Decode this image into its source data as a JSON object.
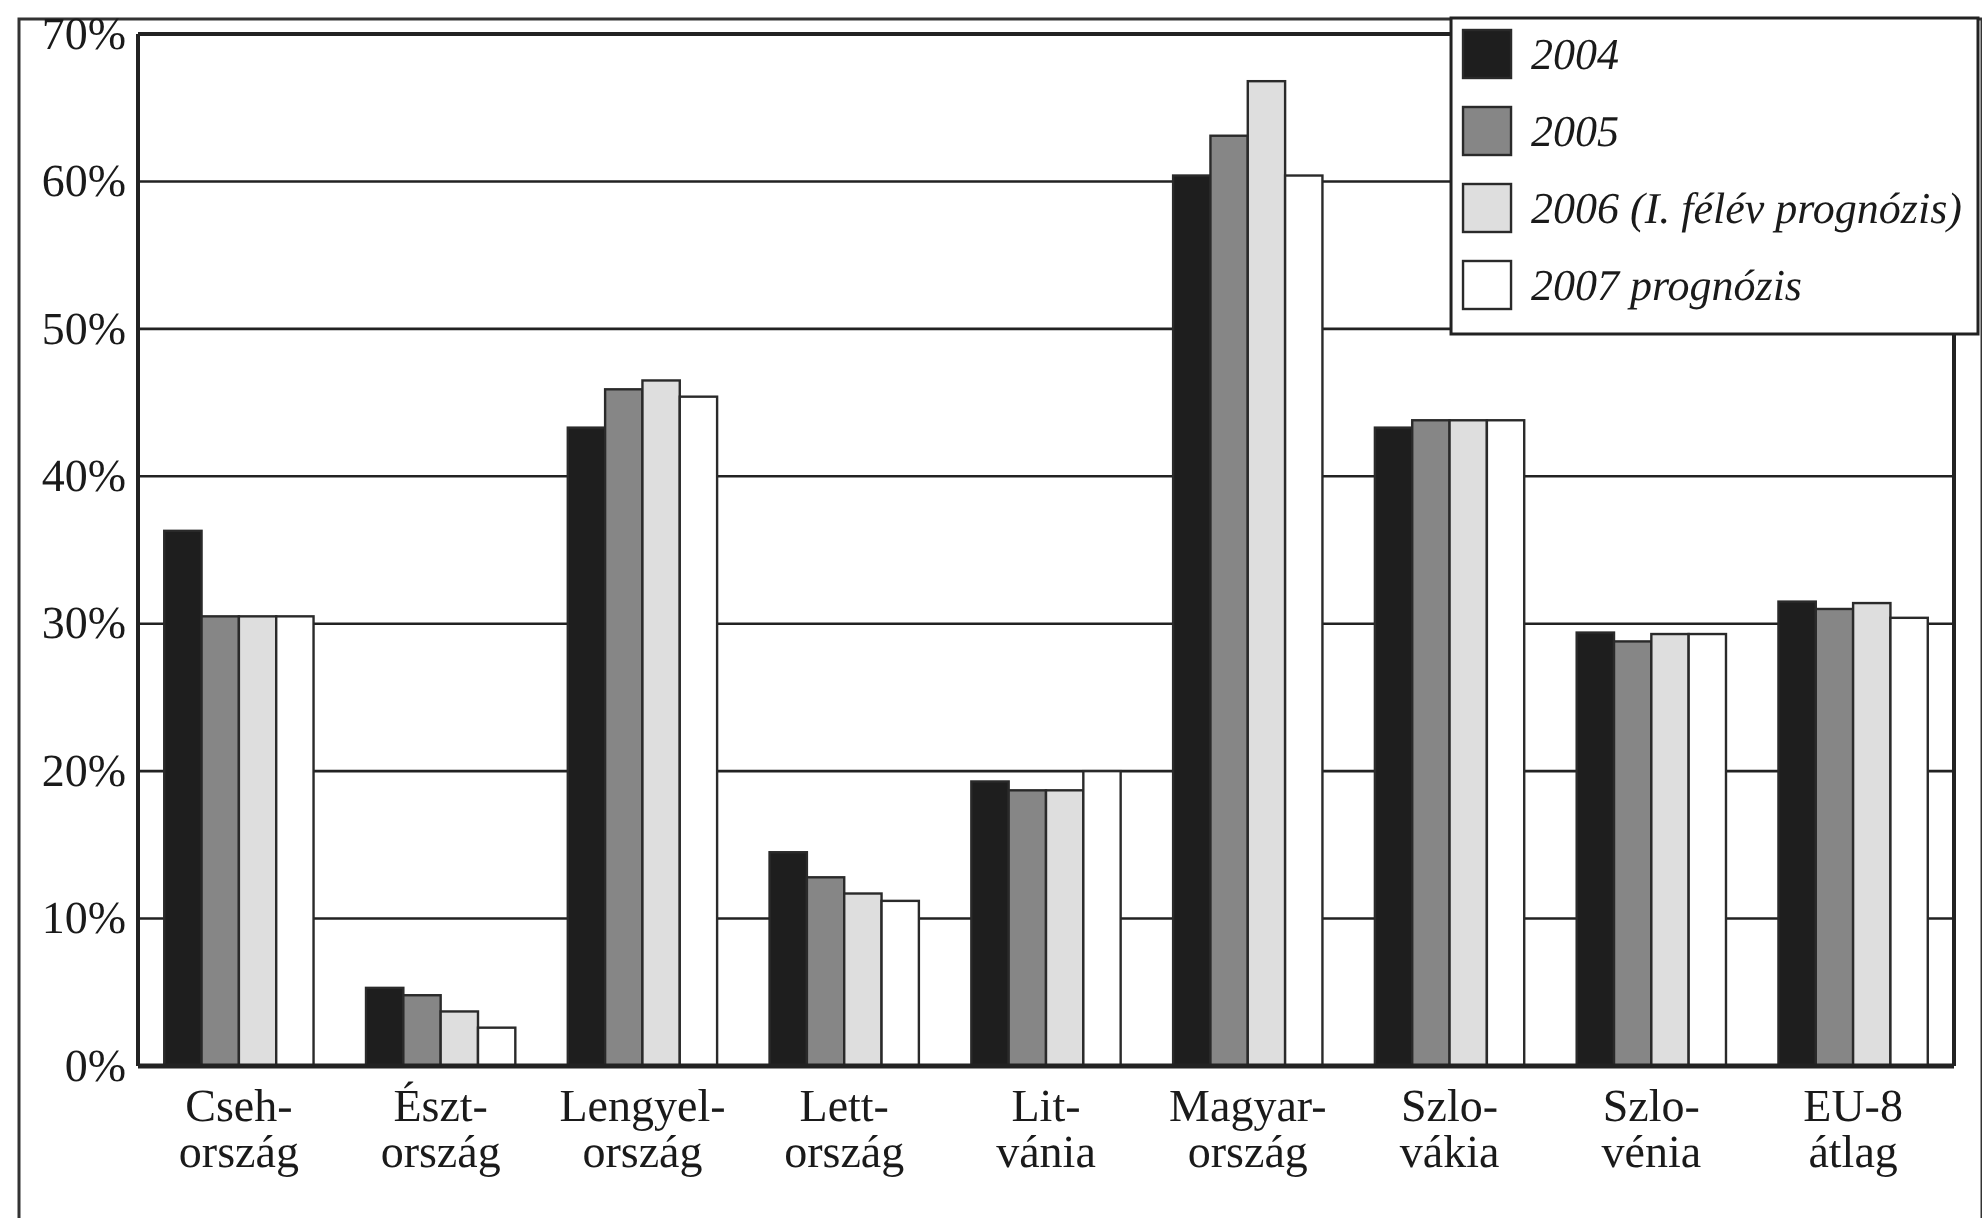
{
  "chart_data": {
    "type": "bar",
    "categories": [
      "Cseh-\nország",
      "Észt-\nország",
      "Lengyel-\nország",
      "Lett-\nország",
      "Lit-\nvánia",
      "Magyar-\nország",
      "Szlo-\nvákia",
      "Szlo-\nvénia",
      "EU-8\nátlag"
    ],
    "series": [
      {
        "name": "2004",
        "color": "#1e1e1e",
        "values": [
          36.3,
          5.3,
          43.3,
          14.5,
          19.3,
          60.4,
          43.3,
          29.4,
          31.5
        ]
      },
      {
        "name": "2005",
        "color": "#868686",
        "values": [
          30.5,
          4.8,
          45.9,
          12.8,
          18.7,
          63.1,
          43.8,
          28.8,
          31.0
        ]
      },
      {
        "name": "2006 (I. félév prognózis)",
        "color": "#dedede",
        "values": [
          30.5,
          3.7,
          46.5,
          11.7,
          18.7,
          66.8,
          43.8,
          29.3,
          31.4
        ]
      },
      {
        "name": "2007 prognózis",
        "color": "#ffffff",
        "values": [
          30.5,
          2.6,
          45.4,
          11.2,
          20.0,
          60.4,
          43.8,
          29.3,
          30.4
        ]
      }
    ],
    "ylim": [
      0,
      70
    ],
    "yticks": [
      {
        "value": 0,
        "label": "0%"
      },
      {
        "value": 10,
        "label": "10%"
      },
      {
        "value": 20,
        "label": "20%"
      },
      {
        "value": 30,
        "label": "30%"
      },
      {
        "value": 40,
        "label": "40%"
      },
      {
        "value": 50,
        "label": "50%"
      },
      {
        "value": 60,
        "label": "60%"
      },
      {
        "value": 70,
        "label": "70%"
      }
    ],
    "grid": "y",
    "legend": "top right"
  }
}
